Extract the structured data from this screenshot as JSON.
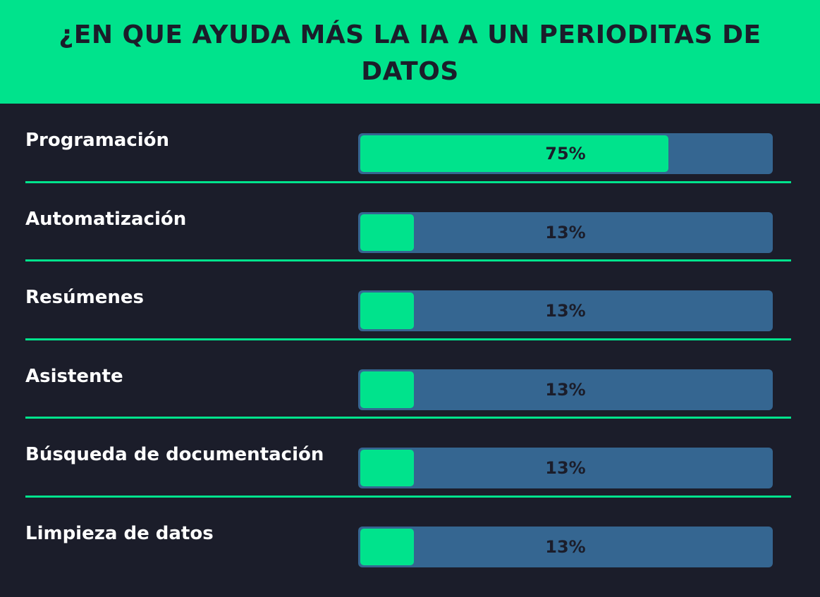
{
  "title": "¿EN QUE AYUDA MÁS LA IA A UN PERIODITAS DE DATOS",
  "colors": {
    "background": "#1b1d2a",
    "accent": "#00e38c",
    "track": "#356691",
    "text_light": "#ffffff",
    "text_dark": "#1b1d2a"
  },
  "chart_data": {
    "type": "bar",
    "orientation": "horizontal",
    "categories": [
      "Programación",
      "Automatización",
      "Resúmenes",
      "Asistente",
      "Búsqueda de documentación",
      "Limpieza de datos"
    ],
    "values": [
      75,
      13,
      13,
      13,
      13,
      13
    ],
    "value_labels": [
      "75%",
      "13%",
      "13%",
      "13%",
      "13%",
      "13%"
    ],
    "xlim": [
      0,
      100
    ],
    "title": "¿EN QUE AYUDA MÁS LA IA A UN PERIODITAS DE DATOS",
    "xlabel": "",
    "ylabel": ""
  }
}
